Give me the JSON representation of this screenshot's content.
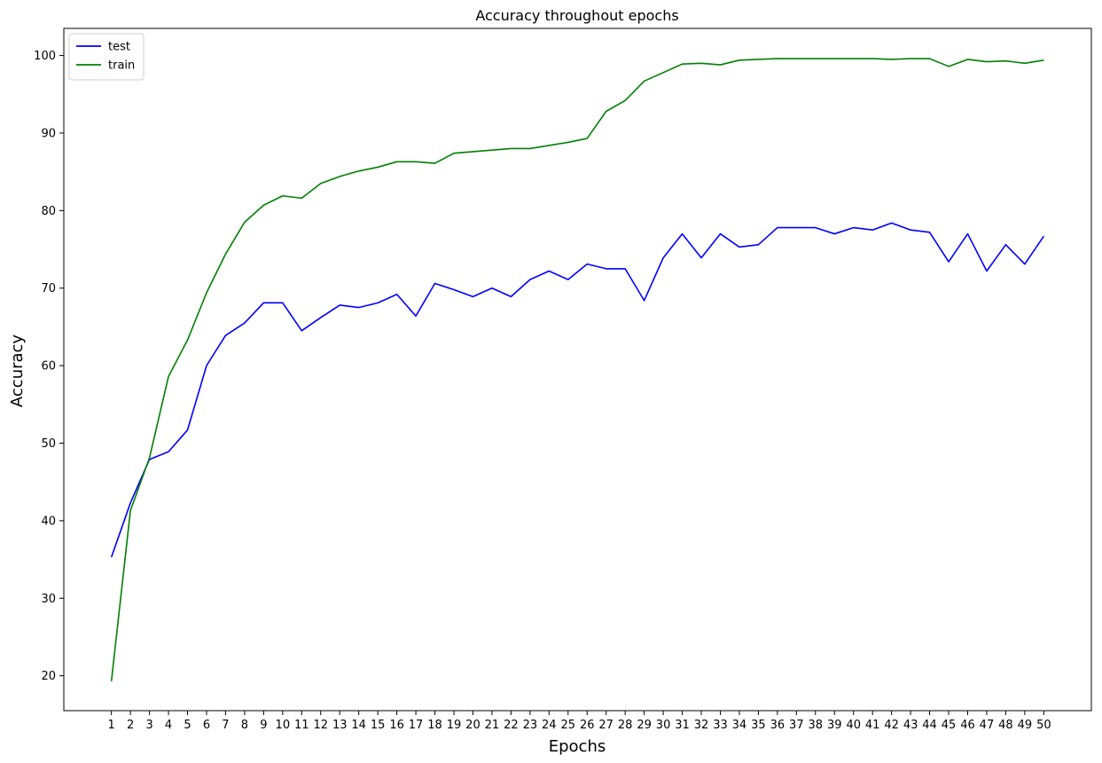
{
  "chart_data": {
    "type": "line",
    "title": "Accuracy throughout epochs",
    "xlabel": "Epochs",
    "ylabel": "Accuracy",
    "x": [
      1,
      2,
      3,
      4,
      5,
      6,
      7,
      8,
      9,
      10,
      11,
      12,
      13,
      14,
      15,
      16,
      17,
      18,
      19,
      20,
      21,
      22,
      23,
      24,
      25,
      26,
      27,
      28,
      29,
      30,
      31,
      32,
      33,
      34,
      35,
      36,
      37,
      38,
      39,
      40,
      41,
      42,
      43,
      44,
      45,
      46,
      47,
      48,
      49,
      50
    ],
    "ylim": [
      15.5,
      103.5
    ],
    "yticks": [
      20,
      30,
      40,
      50,
      60,
      70,
      80,
      90,
      100
    ],
    "grid": false,
    "legend_position": "top-left",
    "series": [
      {
        "name": "test",
        "color": "#0000ff",
        "values": [
          35.3,
          42.3,
          47.9,
          48.9,
          51.7,
          60.0,
          63.9,
          65.5,
          68.1,
          68.1,
          64.5,
          66.2,
          67.8,
          67.5,
          68.1,
          69.2,
          66.4,
          70.6,
          69.8,
          68.9,
          70.0,
          68.9,
          71.1,
          72.2,
          71.1,
          73.1,
          72.5,
          72.5,
          68.4,
          73.9,
          77.0,
          73.9,
          77.0,
          75.3,
          75.6,
          77.8,
          77.8,
          77.8,
          77.0,
          77.8,
          77.5,
          78.4,
          77.5,
          77.2,
          73.4,
          77.0,
          72.2,
          75.6,
          73.1,
          76.7
        ]
      },
      {
        "name": "train",
        "color": "#008000",
        "values": [
          19.3,
          41.3,
          48.1,
          58.6,
          63.3,
          69.4,
          74.4,
          78.5,
          80.7,
          81.9,
          81.6,
          83.5,
          84.4,
          85.1,
          85.6,
          86.3,
          86.3,
          86.1,
          87.4,
          87.6,
          87.8,
          88.0,
          88.0,
          88.4,
          88.8,
          89.3,
          92.8,
          94.2,
          96.7,
          97.8,
          98.9,
          99.0,
          98.8,
          99.4,
          99.5,
          99.6,
          99.6,
          99.6,
          99.6,
          99.6,
          99.6,
          99.5,
          99.6,
          99.6,
          98.6,
          99.5,
          99.2,
          99.3,
          99.0,
          99.4
        ]
      }
    ]
  }
}
